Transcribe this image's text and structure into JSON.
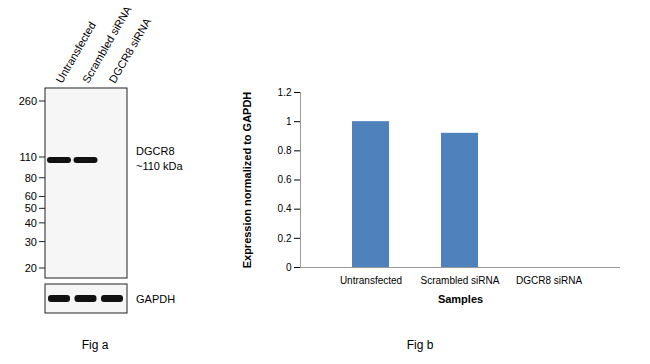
{
  "chart_data": {
    "type": "bar",
    "caption": "Fig b",
    "categories": [
      "Untransfected",
      "Scrambled siRNA",
      "DGCR8 siRNA"
    ],
    "values": [
      1.0,
      0.92,
      0
    ],
    "color": "#4f81bd",
    "x_label": "Samples",
    "y_label": "Expression normalized to GAPDH",
    "ylim": [
      0,
      1.2
    ],
    "yticks": [
      0,
      0.2,
      0.4,
      0.6,
      0.8,
      1,
      1.2
    ],
    "grid": false
  },
  "blot": {
    "caption": "Fig a",
    "lanes": [
      "Untransfected",
      "Scrambled siRNA",
      "DGCR8 siRNA"
    ],
    "markers_kda": [
      260,
      110,
      80,
      60,
      50,
      40,
      30,
      20
    ],
    "target": {
      "name": "DGCR8",
      "size_label": "~110 kDa",
      "band_kda": 105,
      "present": [
        true,
        true,
        false
      ]
    },
    "loading_control": {
      "name": "GAPDH",
      "present": [
        true,
        true,
        true
      ]
    }
  }
}
